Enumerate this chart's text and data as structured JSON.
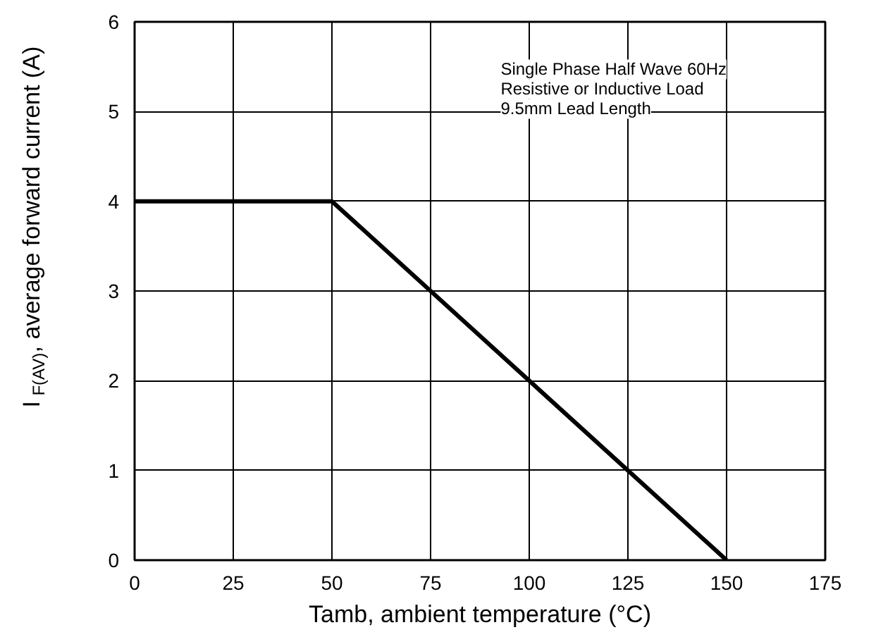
{
  "chart_data": {
    "type": "line",
    "xlabel": "Tamb, ambient temperature (°C)",
    "ylabel": "I$_{F(AV)}$, average forward current (A)",
    "x": [
      0,
      50,
      150
    ],
    "series": [
      {
        "color": "#000000",
        "values": [
          4,
          4,
          0
        ]
      }
    ],
    "xlim": [
      0,
      175
    ],
    "ylim": [
      0,
      6
    ],
    "xticks": [
      0,
      25,
      50,
      75,
      100,
      125,
      150,
      175
    ],
    "yticks": [
      0,
      1,
      2,
      3,
      4,
      5,
      6
    ],
    "grid": true,
    "marker": "none",
    "line_style": "solid",
    "annotations": [
      "Single Phase Half Wave 60Hz",
      "Resistive or Inductive Load",
      "9.5mm Lead Length"
    ]
  }
}
